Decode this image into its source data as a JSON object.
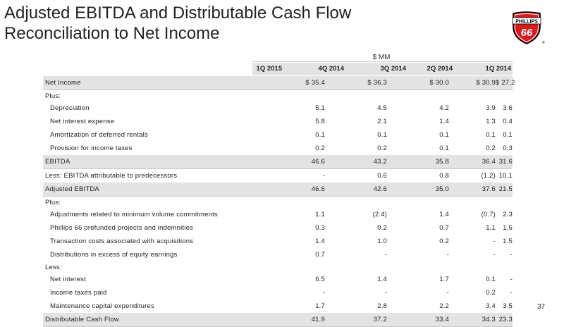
{
  "slide": {
    "title_line1": "Adjusted EBITDA and Distributable Cash Flow",
    "title_line2": "Reconciliation to Net Income",
    "page_number": "37",
    "logo": {
      "brand": "PHILLIPS",
      "number": "66",
      "mark": "®",
      "colors": {
        "shield": "#d71920",
        "outline": "#000000"
      }
    }
  },
  "table": {
    "units": "$ MM",
    "columns": [
      "1Q 2015",
      "4Q 2014",
      "3Q 2014",
      "2Q 2014",
      "1Q 2014"
    ],
    "rows": [
      {
        "label": "Net Income",
        "values": [
          "$ 35.4",
          "$ 36.3",
          "$ 30.0",
          "$ 30.9",
          "$ 27.2"
        ]
      },
      {
        "label": "Plus:"
      },
      {
        "label": "Depreciation",
        "values": [
          "5.1",
          "4.5",
          "4.2",
          "3.9",
          "3.6"
        ]
      },
      {
        "label": "Net interest expense",
        "values": [
          "5.8",
          "2.1",
          "1.4",
          "1.3",
          "0.4"
        ]
      },
      {
        "label": "Amortization of deferred rentals",
        "values": [
          "0.1",
          "0.1",
          "0.1",
          "0.1",
          "0.1"
        ]
      },
      {
        "label": "Provision for income taxes",
        "values": [
          "0.2",
          "0.2",
          "0.1",
          "0.2",
          "0.3"
        ]
      },
      {
        "label": "EBITDA",
        "values": [
          "46.6",
          "43.2",
          "35.8",
          "36.4",
          "31.6"
        ]
      },
      {
        "label": "Less: EBITDA attributable to predecessors",
        "values": [
          "-",
          "0.6",
          "0.8",
          "(1.2)",
          "10.1"
        ]
      },
      {
        "label": "Adjusted EBITDA",
        "values": [
          "46.6",
          "42.6",
          "35.0",
          "37.6",
          "21.5"
        ]
      },
      {
        "label": "Plus:"
      },
      {
        "label": "Adjustments related to minimum volume commitments",
        "values": [
          "1.1",
          "(2.4)",
          "1.4",
          "(0.7)",
          "2.3"
        ]
      },
      {
        "label": "Phillips 66 prefunded projects and indemnities",
        "values": [
          "0.3",
          "0.2",
          "0.7",
          "1.1",
          "1.5"
        ]
      },
      {
        "label": "Transaction costs associated with acquisitions",
        "values": [
          "1.4",
          "1.0",
          "0.2",
          "-",
          "1.5"
        ]
      },
      {
        "label": "Distributions in excess of equity earnings",
        "values": [
          "0.7",
          "-",
          "-",
          "-",
          "-"
        ]
      },
      {
        "label": "Less:"
      },
      {
        "label": "Net interest",
        "values": [
          "6.5",
          "1.4",
          "1.7",
          "0.1",
          "-"
        ]
      },
      {
        "label": "Income taxes paid",
        "values": [
          "-",
          "-",
          "-",
          "0.2",
          "-"
        ]
      },
      {
        "label": "Maintenance capital expenditures",
        "values": [
          "1.7",
          "2.8",
          "2.2",
          "3.4",
          "3.5"
        ]
      },
      {
        "label": "Distributable Cash Flow",
        "values": [
          "41.9",
          "37.2",
          "33.4",
          "34.3",
          "23.3"
        ]
      }
    ]
  }
}
